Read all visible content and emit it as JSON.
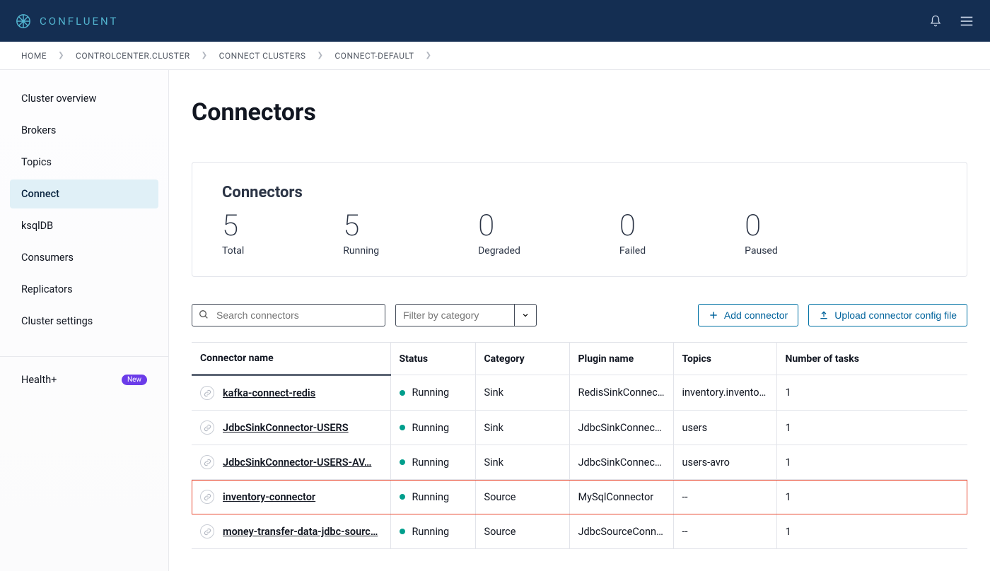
{
  "brand": "CONFLUENT",
  "breadcrumbs": [
    "HOME",
    "CONTROLCENTER.CLUSTER",
    "CONNECT CLUSTERS",
    "CONNECT-DEFAULT"
  ],
  "sidebar": {
    "items": [
      {
        "label": "Cluster overview",
        "active": false
      },
      {
        "label": "Brokers",
        "active": false
      },
      {
        "label": "Topics",
        "active": false
      },
      {
        "label": "Connect",
        "active": true
      },
      {
        "label": "ksqlDB",
        "active": false
      },
      {
        "label": "Consumers",
        "active": false
      },
      {
        "label": "Replicators",
        "active": false
      },
      {
        "label": "Cluster settings",
        "active": false
      }
    ],
    "health_label": "Health+",
    "new_badge": "New"
  },
  "page": {
    "title": "Connectors"
  },
  "stats": {
    "heading": "Connectors",
    "items": [
      {
        "value": "5",
        "label": "Total"
      },
      {
        "value": "5",
        "label": "Running"
      },
      {
        "value": "0",
        "label": "Degraded"
      },
      {
        "value": "0",
        "label": "Failed"
      },
      {
        "value": "0",
        "label": "Paused"
      }
    ]
  },
  "toolbar": {
    "search_placeholder": "Search connectors",
    "filter_placeholder": "Filter by category",
    "add_label": "Add connector",
    "upload_label": "Upload connector config file"
  },
  "table": {
    "columns": [
      "Connector name",
      "Status",
      "Category",
      "Plugin name",
      "Topics",
      "Number of tasks"
    ],
    "status_color": "#009e8c",
    "rows": [
      {
        "name": "kafka-connect-redis",
        "status": "Running",
        "category": "Sink",
        "plugin": "RedisSinkConnec…",
        "topics": "inventory.invento…",
        "tasks": "1",
        "highlight": false
      },
      {
        "name": "JdbcSinkConnector-USERS",
        "status": "Running",
        "category": "Sink",
        "plugin": "JdbcSinkConnec…",
        "topics": "users",
        "tasks": "1",
        "highlight": false
      },
      {
        "name": "JdbcSinkConnector-USERS-AV…",
        "status": "Running",
        "category": "Sink",
        "plugin": "JdbcSinkConnec…",
        "topics": "users-avro",
        "tasks": "1",
        "highlight": false
      },
      {
        "name": "inventory-connector",
        "status": "Running",
        "category": "Source",
        "plugin": "MySqlConnector",
        "topics": "--",
        "tasks": "1",
        "highlight": true
      },
      {
        "name": "money-transfer-data-jdbc-sourc…",
        "status": "Running",
        "category": "Source",
        "plugin": "JdbcSourceConn…",
        "topics": "--",
        "tasks": "1",
        "highlight": false
      }
    ]
  }
}
